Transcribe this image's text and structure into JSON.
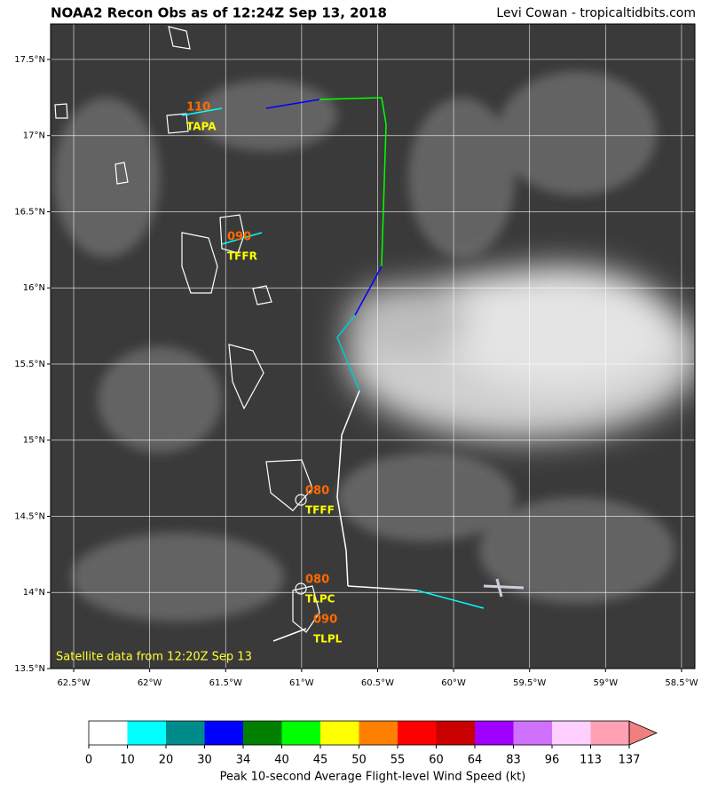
{
  "header": {
    "title": "NOAA2 Recon Obs as of 12:24Z Sep 13, 2018",
    "credit": "Levi Cowan - tropicaltidbits.com"
  },
  "map": {
    "lonlim": [
      -62.652,
      -58.412
    ],
    "latlim": [
      13.5,
      17.733
    ],
    "lonticks": [
      {
        "value": -62.5,
        "label": "62.5°W"
      },
      {
        "value": -62,
        "label": "62°W"
      },
      {
        "value": -61.5,
        "label": "61.5°W"
      },
      {
        "value": -61,
        "label": "61°W"
      },
      {
        "value": -60.5,
        "label": "60.5°W"
      },
      {
        "value": -60,
        "label": "60°W"
      },
      {
        "value": -59.5,
        "label": "59.5°W"
      },
      {
        "value": -59,
        "label": "59°W"
      },
      {
        "value": -58.5,
        "label": "58.5°W"
      }
    ],
    "latticks": [
      {
        "value": 13.5,
        "label": "13.5°N"
      },
      {
        "value": 14,
        "label": "14°N"
      },
      {
        "value": 14.5,
        "label": "14.5°N"
      },
      {
        "value": 15,
        "label": "15°N"
      },
      {
        "value": 15.5,
        "label": "15.5°N"
      },
      {
        "value": 16,
        "label": "16°N"
      },
      {
        "value": 16.5,
        "label": "16.5°N"
      },
      {
        "value": 17,
        "label": "17°N"
      },
      {
        "value": 17.5,
        "label": "17.5°N"
      }
    ],
    "grid": true,
    "stations": [
      {
        "code": "TAPA",
        "value": "110"
      },
      {
        "code": "TFFR",
        "value": "090"
      },
      {
        "code": "TFFF",
        "value": "080"
      },
      {
        "code": "TLPC",
        "value": "080"
      },
      {
        "code": "TLPL",
        "value": "090"
      }
    ],
    "note": "Satellite data from 12:20Z Sep 13"
  },
  "colorbar": {
    "ticks": [
      0,
      10,
      20,
      30,
      34,
      40,
      45,
      50,
      55,
      60,
      64,
      83,
      96,
      113,
      137
    ],
    "colors": [
      "#ffffff",
      "#00ffff",
      "#008b8b",
      "#0000ff",
      "#008000",
      "#00ff00",
      "#ffff00",
      "#ff7f00",
      "#ff0000",
      "#c80000",
      "#a000ff",
      "#d070ff",
      "#ffd0ff",
      "#ffa0b4"
    ],
    "extend_color": "#f08080",
    "label": "Peak 10-second Average Flight-level Wind Speed (kt)"
  }
}
